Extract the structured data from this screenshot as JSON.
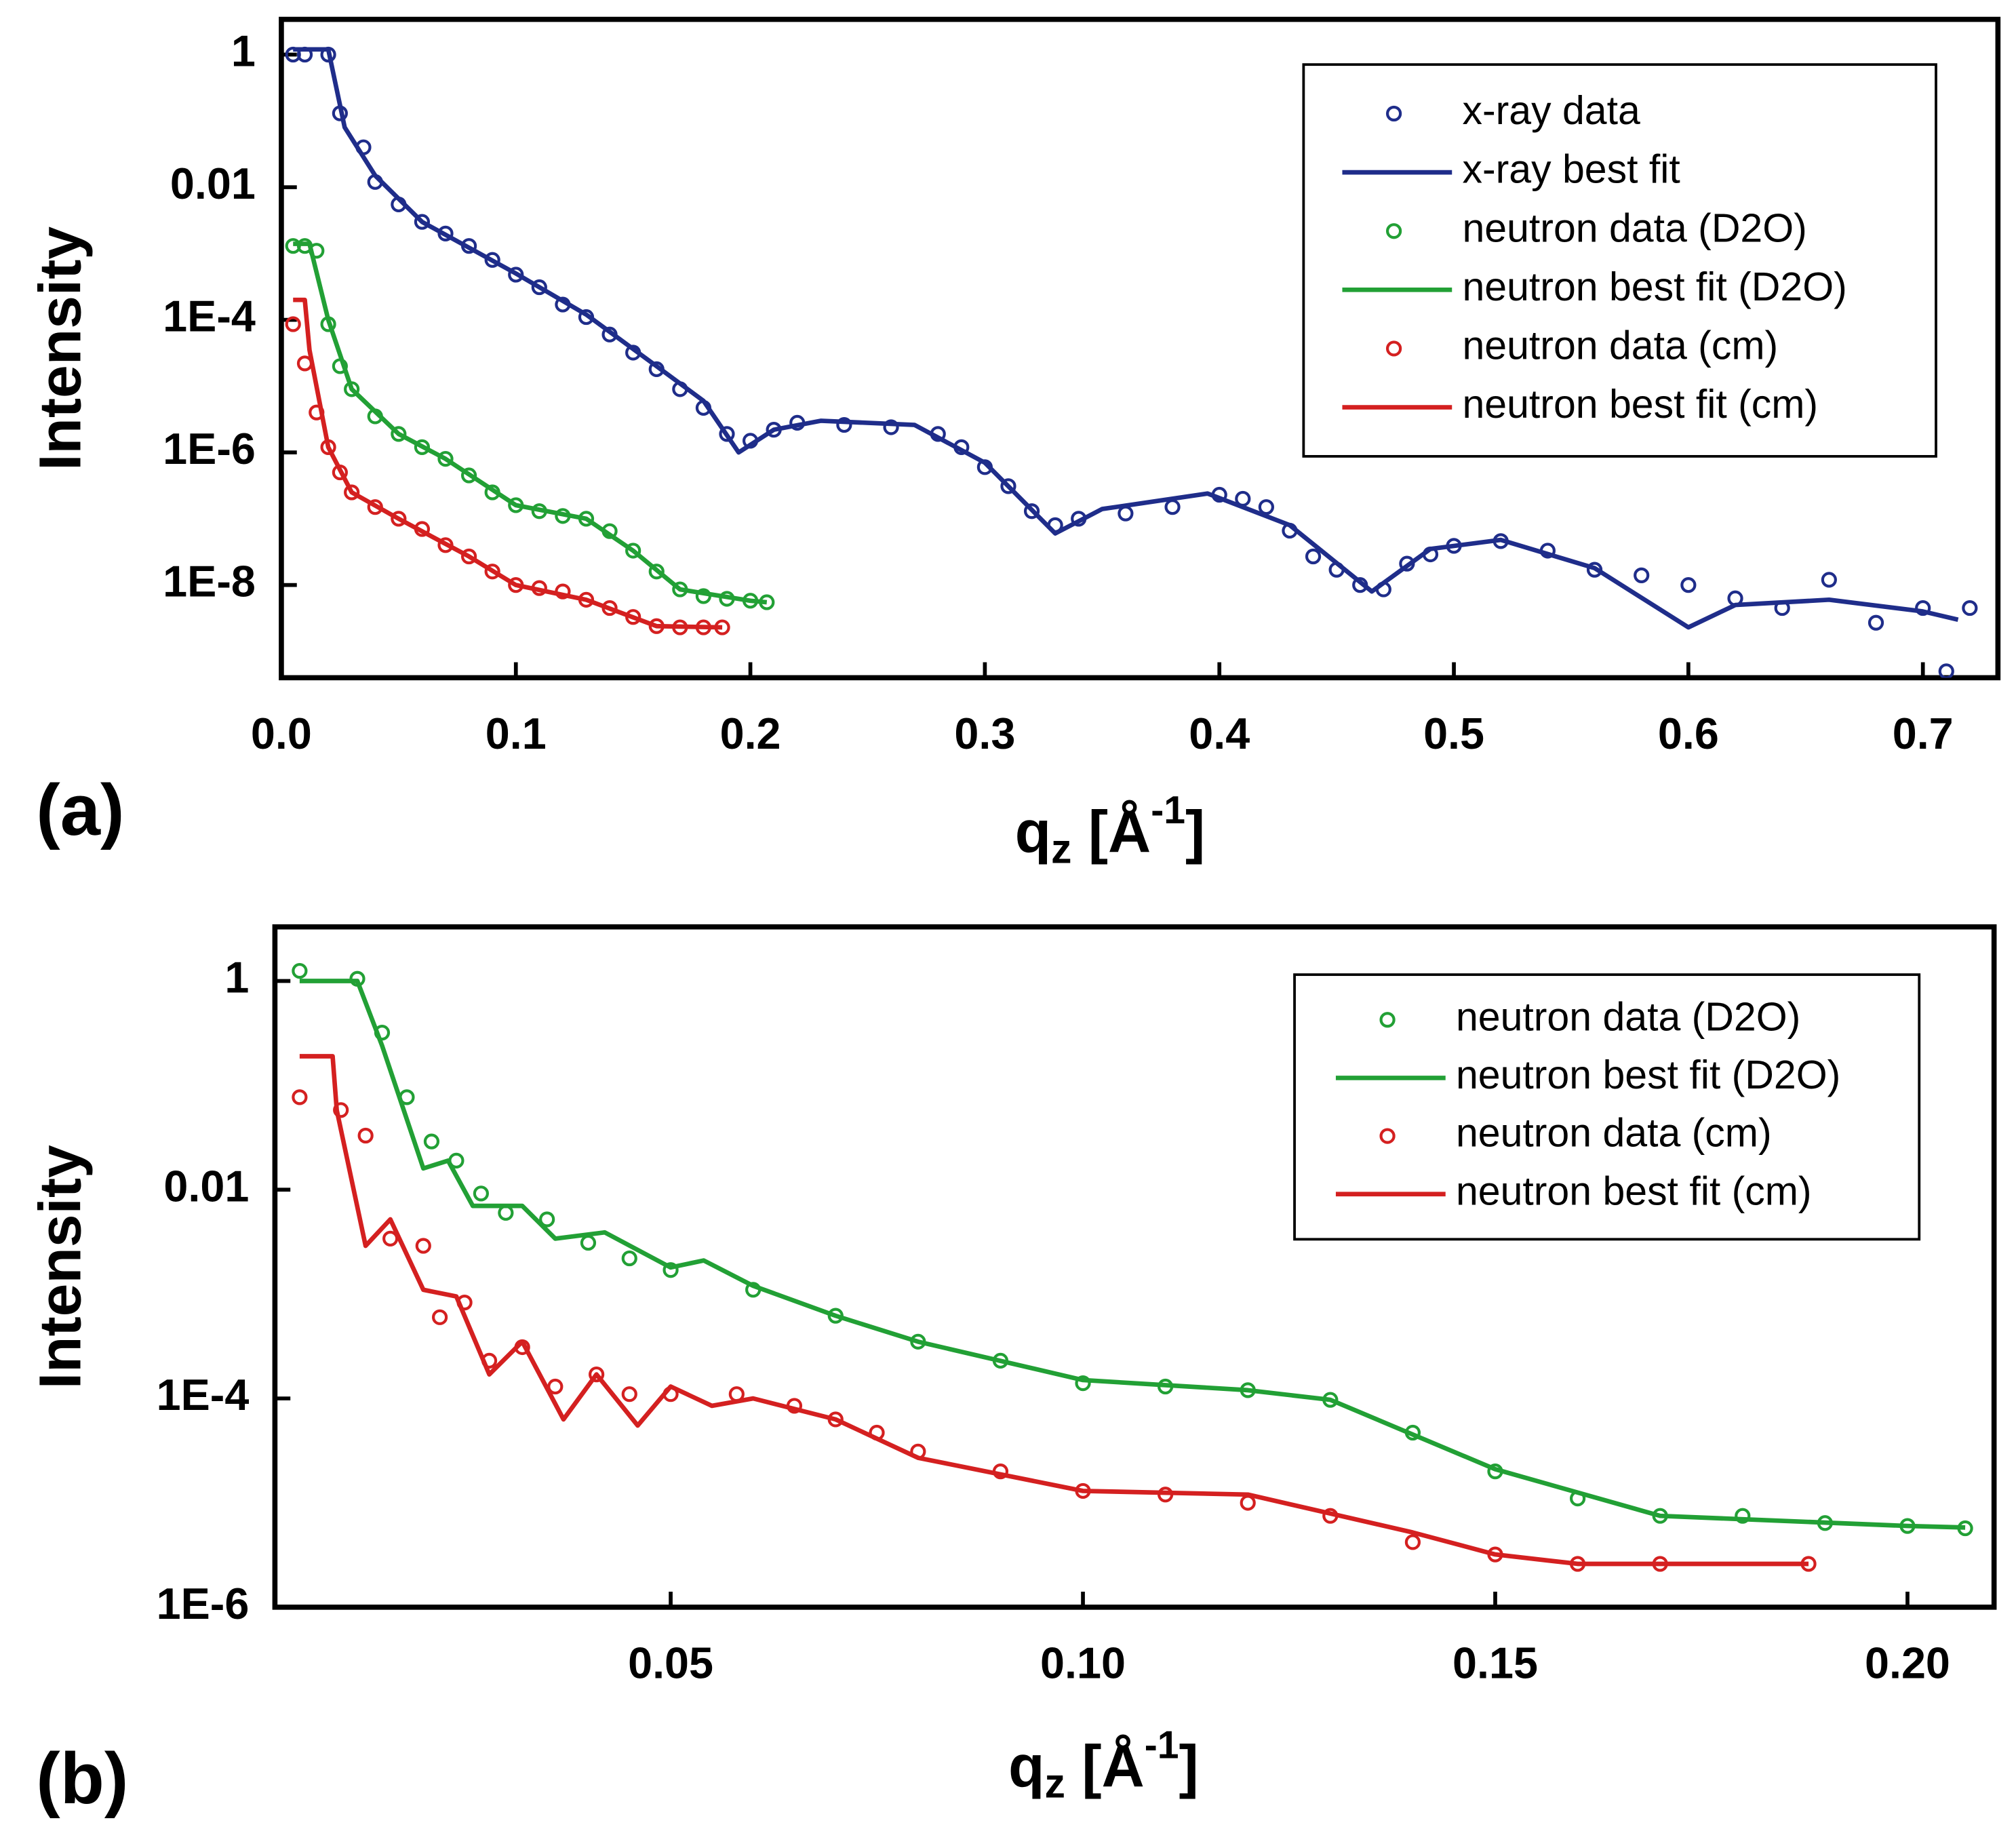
{
  "chart_data": [
    {
      "type": "line",
      "panel_label": "(a)",
      "ylabel": "Intensity",
      "xlabel_parts": [
        "q",
        "z",
        " [Å",
        "-1",
        "]"
      ],
      "log_y": true,
      "legend": "upper right",
      "xlim": [
        0,
        0.732
      ],
      "ylim": [
        4e-10,
        3.4
      ],
      "xticks": [
        {
          "value": 0,
          "label": "0.0"
        },
        0.1,
        0.2,
        0.3,
        0.4,
        0.5,
        0.6,
        0.7
      ],
      "yticks": [
        1,
        0.01,
        {
          "value": 0.0001,
          "label": "1E-4"
        },
        {
          "value": 1e-06,
          "label": "1E-6"
        },
        {
          "value": 1e-08,
          "label": "1E-8"
        }
      ],
      "series": [
        {
          "name": "x-ray data",
          "color": "#1f2d8a",
          "style": "markers",
          "x": [
            0.005,
            0.01,
            0.02,
            0.025,
            0.035,
            0.04,
            0.05,
            0.06,
            0.07,
            0.08,
            0.09,
            0.1,
            0.11,
            0.12,
            0.13,
            0.14,
            0.15,
            0.16,
            0.17,
            0.18,
            0.19,
            0.2,
            0.21,
            0.22,
            0.24,
            0.26,
            0.28,
            0.29,
            0.3,
            0.31,
            0.32,
            0.33,
            0.34,
            0.36,
            0.38,
            0.4,
            0.41,
            0.42,
            0.43,
            0.44,
            0.45,
            0.46,
            0.47,
            0.48,
            0.49,
            0.5,
            0.52,
            0.54,
            0.56,
            0.58,
            0.6,
            0.62,
            0.64,
            0.66,
            0.68,
            0.7,
            0.71,
            0.72
          ],
          "values": [
            1,
            1,
            1,
            0.13,
            0.04,
            0.012,
            0.0055,
            0.003,
            0.002,
            0.0013,
            0.0008,
            0.00048,
            0.00031,
            0.00017,
            0.00011,
            6e-05,
            3.2e-05,
            1.8e-05,
            9e-06,
            4.7e-06,
            1.9e-06,
            1.5e-06,
            2.2e-06,
            2.8e-06,
            2.6e-06,
            2.4e-06,
            1.9e-06,
            1.2e-06,
            6e-07,
            3.1e-07,
            1.3e-07,
            8e-08,
            1e-07,
            1.2e-07,
            1.5e-07,
            2.3e-07,
            2e-07,
            1.5e-07,
            6.6e-08,
            2.7e-08,
            1.7e-08,
            1e-08,
            8.6e-09,
            2.1e-08,
            2.9e-08,
            3.9e-08,
            4.6e-08,
            3.3e-08,
            1.7e-08,
            1.4e-08,
            1e-08,
            6.3e-09,
            4.5e-09,
            1.2e-08,
            2.7e-09,
            4.5e-09,
            5e-10,
            4.5e-09
          ]
        },
        {
          "name": "x-ray best fit",
          "color": "#1f2d8a",
          "style": "line",
          "x": [
            0.005,
            0.02,
            0.027,
            0.04,
            0.06,
            0.1,
            0.13,
            0.16,
            0.18,
            0.195,
            0.21,
            0.23,
            0.27,
            0.3,
            0.33,
            0.35,
            0.395,
            0.43,
            0.465,
            0.49,
            0.52,
            0.56,
            0.6,
            0.62,
            0.66,
            0.7,
            0.715
          ],
          "values": [
            1.2,
            1.2,
            0.08,
            0.015,
            0.003,
            0.0005,
            0.00012,
            2e-05,
            6e-06,
            1e-06,
            2.2e-06,
            3e-06,
            2.6e-06,
            7e-07,
            6e-08,
            1.4e-07,
            2.4e-07,
            8e-08,
            8e-09,
            3.5e-08,
            4.8e-08,
            1.8e-08,
            2.3e-09,
            5e-09,
            6e-09,
            4e-09,
            3e-09
          ]
        },
        {
          "name": "neutron data (D2O)",
          "color": "#22a035",
          "style": "markers",
          "x": [
            0.005,
            0.01,
            0.015,
            0.02,
            0.025,
            0.03,
            0.04,
            0.05,
            0.06,
            0.07,
            0.08,
            0.09,
            0.1,
            0.11,
            0.12,
            0.13,
            0.14,
            0.15,
            0.16,
            0.17,
            0.18,
            0.19,
            0.2,
            0.207
          ],
          "values": [
            0.0013,
            0.0013,
            0.0011,
            8.6e-05,
            2e-05,
            9e-06,
            3.5e-06,
            1.9e-06,
            1.2e-06,
            8e-07,
            4.5e-07,
            2.5e-07,
            1.6e-07,
            1.3e-07,
            1.1e-07,
            1e-07,
            6.5e-08,
            3.3e-08,
            1.6e-08,
            8.6e-09,
            6.8e-09,
            6.2e-09,
            5.8e-09,
            5.5e-09
          ]
        },
        {
          "name": "neutron best fit (D2O)",
          "color": "#22a035",
          "style": "line",
          "x": [
            0.005,
            0.012,
            0.02,
            0.03,
            0.05,
            0.07,
            0.1,
            0.13,
            0.15,
            0.17,
            0.2,
            0.207
          ],
          "values": [
            0.0014,
            0.0014,
            0.0001,
            9e-06,
            1.9e-06,
            8e-07,
            1.6e-07,
            1e-07,
            3.3e-08,
            8.6e-09,
            5.8e-09,
            5.5e-09
          ]
        },
        {
          "name": "neutron data (cm)",
          "color": "#d42020",
          "style": "markers",
          "x": [
            0.005,
            0.01,
            0.015,
            0.02,
            0.025,
            0.03,
            0.04,
            0.05,
            0.06,
            0.07,
            0.08,
            0.09,
            0.1,
            0.11,
            0.12,
            0.13,
            0.14,
            0.15,
            0.16,
            0.17,
            0.18,
            0.188
          ],
          "values": [
            8.6e-05,
            2.2e-05,
            4e-06,
            1.2e-06,
            5e-07,
            2.5e-07,
            1.5e-07,
            1e-07,
            7e-08,
            4e-08,
            2.7e-08,
            1.6e-08,
            1e-08,
            9e-09,
            8e-09,
            6e-09,
            4.5e-09,
            3.3e-09,
            2.4e-09,
            2.3e-09,
            2.3e-09,
            2.3e-09
          ]
        },
        {
          "name": "neutron best fit (cm)",
          "color": "#d42020",
          "style": "line",
          "x": [
            0.005,
            0.01,
            0.012,
            0.02,
            0.03,
            0.05,
            0.08,
            0.1,
            0.13,
            0.16,
            0.188
          ],
          "values": [
            0.0002,
            0.0002,
            3.5e-05,
            1.2e-06,
            2.5e-07,
            1e-07,
            2.7e-08,
            1e-08,
            6e-09,
            2.4e-09,
            2.3e-09
          ]
        }
      ]
    },
    {
      "type": "line",
      "panel_label": "(b)",
      "ylabel": "Intensity",
      "xlabel_parts": [
        "q",
        "z",
        " [Å",
        "-1",
        "]"
      ],
      "log_y": true,
      "legend": "upper right",
      "xlim": [
        0.002,
        0.2105
      ],
      "ylim": [
        1e-06,
        3.3
      ],
      "xticks": [
        0.05,
        {
          "value": 0.1,
          "label": "0.10"
        },
        0.15,
        {
          "value": 0.2,
          "label": "0.20"
        }
      ],
      "yticks": [
        1,
        0.01,
        {
          "value": 0.0001,
          "label": "1E-4"
        },
        {
          "value": 1e-06,
          "label": "1E-6"
        }
      ],
      "series": [
        {
          "name": "neutron data (D2O)",
          "color": "#22a035",
          "style": "markers",
          "x": [
            0.005,
            0.012,
            0.015,
            0.018,
            0.021,
            0.024,
            0.027,
            0.03,
            0.035,
            0.04,
            0.045,
            0.05,
            0.06,
            0.07,
            0.08,
            0.09,
            0.1,
            0.11,
            0.12,
            0.13,
            0.14,
            0.15,
            0.16,
            0.17,
            0.18,
            0.19,
            0.2,
            0.207
          ],
          "values": [
            1.25,
            1.05,
            0.32,
            0.077,
            0.029,
            0.019,
            0.0092,
            0.006,
            0.0052,
            0.0031,
            0.0022,
            0.0017,
            0.0011,
            0.00062,
            0.00035,
            0.00023,
            0.00014,
            0.00013,
            0.00012,
            9.7e-05,
            4.7e-05,
            2e-05,
            1.1e-05,
            7.5e-06,
            7.5e-06,
            6.4e-06,
            6e-06,
            5.7e-06
          ]
        },
        {
          "name": "neutron best fit (D2O)",
          "color": "#22a035",
          "style": "line",
          "x": [
            0.005,
            0.012,
            0.015,
            0.02,
            0.023,
            0.026,
            0.032,
            0.036,
            0.042,
            0.05,
            0.054,
            0.06,
            0.07,
            0.08,
            0.1,
            0.12,
            0.13,
            0.15,
            0.17,
            0.2,
            0.207
          ],
          "values": [
            1,
            1,
            0.24,
            0.016,
            0.019,
            0.007,
            0.007,
            0.0034,
            0.0039,
            0.0018,
            0.0021,
            0.0012,
            0.00062,
            0.00035,
            0.00015,
            0.00012,
            9.7e-05,
            2.1e-05,
            7.5e-06,
            6e-06,
            5.8e-06
          ]
        },
        {
          "name": "neutron data (cm)",
          "color": "#d42020",
          "style": "markers",
          "x": [
            0.005,
            0.01,
            0.013,
            0.016,
            0.02,
            0.022,
            0.025,
            0.028,
            0.032,
            0.036,
            0.041,
            0.045,
            0.05,
            0.058,
            0.065,
            0.07,
            0.075,
            0.08,
            0.09,
            0.1,
            0.11,
            0.12,
            0.13,
            0.14,
            0.15,
            0.16,
            0.17,
            0.188
          ],
          "values": [
            0.077,
            0.058,
            0.033,
            0.0034,
            0.0029,
            0.0006,
            0.00083,
            0.00023,
            0.00031,
            0.00013,
            0.00017,
            0.00011,
            0.00011,
            0.00011,
            8.5e-05,
            6.3e-05,
            4.7e-05,
            3.1e-05,
            2e-05,
            1.3e-05,
            1.2e-05,
            1e-05,
            7.5e-06,
            4.2e-06,
            3.2e-06,
            2.6e-06,
            2.6e-06,
            2.6e-06
          ]
        },
        {
          "name": "neutron best fit (cm)",
          "color": "#d42020",
          "style": "line",
          "x": [
            0.005,
            0.009,
            0.0095,
            0.013,
            0.016,
            0.02,
            0.024,
            0.028,
            0.032,
            0.037,
            0.041,
            0.046,
            0.05,
            0.055,
            0.06,
            0.07,
            0.08,
            0.1,
            0.12,
            0.14,
            0.15,
            0.16,
            0.188
          ],
          "values": [
            0.19,
            0.19,
            0.058,
            0.0029,
            0.0052,
            0.0011,
            0.00095,
            0.00017,
            0.00035,
            6.3e-05,
            0.00017,
            5.5e-05,
            0.00013,
            8.5e-05,
            0.0001,
            6.3e-05,
            2.7e-05,
            1.3e-05,
            1.2e-05,
            5.2e-06,
            3.2e-06,
            2.6e-06,
            2.6e-06
          ]
        }
      ]
    }
  ]
}
